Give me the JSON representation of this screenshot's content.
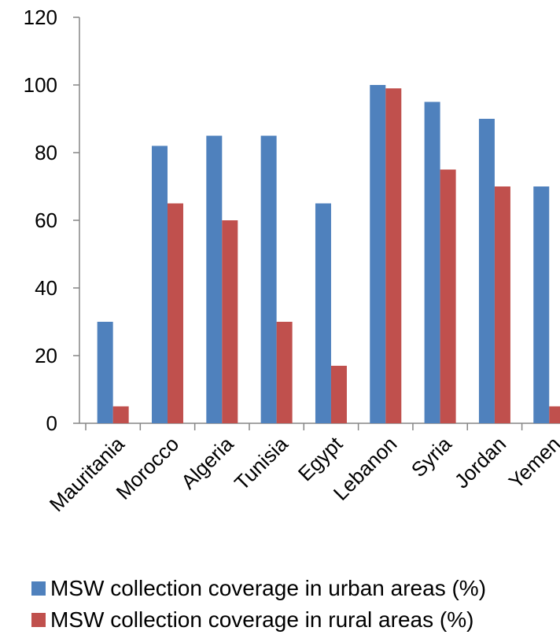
{
  "chart_data": {
    "type": "bar",
    "categories": [
      "Mauritania",
      "Morocco",
      "Algeria",
      "Tunisia",
      "Egypt",
      "Lebanon",
      "Syria",
      "Jordan",
      "Yemen"
    ],
    "series": [
      {
        "name": "MSW collection coverage in urban areas (%)",
        "color": "#4F81BD",
        "values": [
          30,
          82,
          85,
          85,
          65,
          100,
          95,
          90,
          70
        ]
      },
      {
        "name": "MSW collection coverage in rural areas (%)",
        "color": "#C0504D",
        "values": [
          5,
          65,
          60,
          30,
          17,
          99,
          75,
          70,
          5
        ]
      }
    ],
    "ylim": [
      0,
      120
    ],
    "yticks": [
      "0",
      "20",
      "40",
      "60",
      "80",
      "100",
      "120"
    ],
    "grid": false,
    "legend_position": "bottom"
  }
}
